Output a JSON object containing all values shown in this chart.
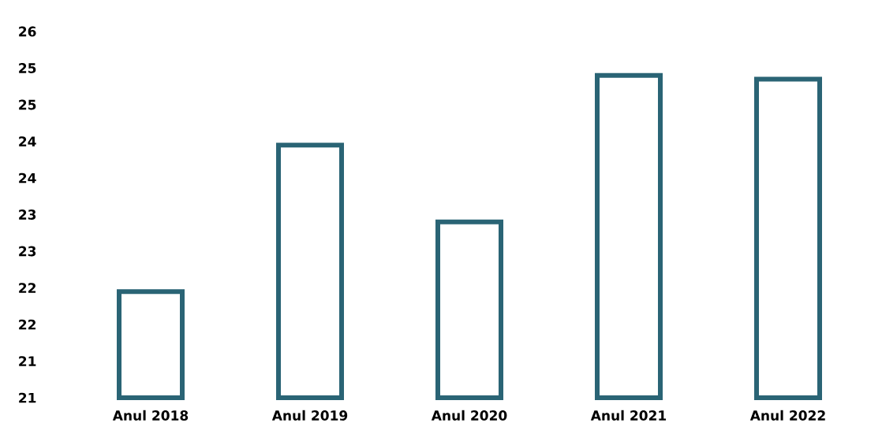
{
  "chart_data": {
    "type": "bar",
    "categories": [
      "Anul 2018",
      "Anul 2019",
      "Anul 2020",
      "Anul 2021",
      "Anul 2022"
    ],
    "values": [
      22.2,
      24.2,
      23.15,
      25.15,
      25.1
    ],
    "color": "#2a6475",
    "ylim": [
      20.75,
      25.75
    ],
    "yticks": [
      {
        "value": 20.75,
        "label": "21"
      },
      {
        "value": 21.25,
        "label": "21"
      },
      {
        "value": 21.75,
        "label": "22"
      },
      {
        "value": 22.25,
        "label": "22"
      },
      {
        "value": 22.75,
        "label": "23"
      },
      {
        "value": 23.25,
        "label": "23"
      },
      {
        "value": 23.75,
        "label": "24"
      },
      {
        "value": 24.25,
        "label": "24"
      },
      {
        "value": 24.75,
        "label": "25"
      },
      {
        "value": 25.25,
        "label": "25"
      },
      {
        "value": 25.75,
        "label": "26"
      }
    ],
    "grid": false
  }
}
